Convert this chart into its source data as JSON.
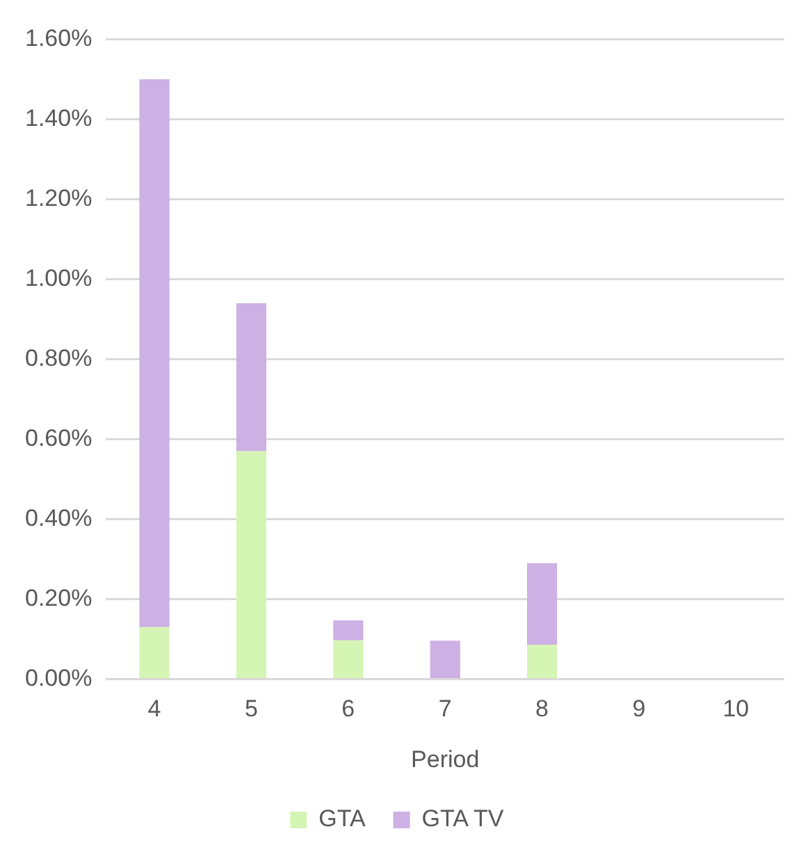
{
  "chart_data": {
    "type": "bar",
    "stacked": true,
    "xlabel": "Period",
    "categories": [
      "4",
      "5",
      "6",
      "7",
      "8",
      "9",
      "10"
    ],
    "series": [
      {
        "name": "GTA",
        "color": "#d5f5b5",
        "values": [
          0.13,
          0.57,
          0.097,
          0,
          0.086,
          0,
          0
        ]
      },
      {
        "name": "GTA TV",
        "color": "#cdb0e4",
        "values": [
          1.37,
          0.37,
          0.05,
          0.096,
          0.204,
          0,
          0
        ]
      }
    ],
    "ylim": [
      0,
      1.6
    ],
    "yticks": [
      {
        "value": 0,
        "label": "0.00%"
      },
      {
        "value": 0.2,
        "label": "0.20%"
      },
      {
        "value": 0.4,
        "label": "0.40%"
      },
      {
        "value": 0.6,
        "label": "0.60%"
      },
      {
        "value": 0.8,
        "label": "0.80%"
      },
      {
        "value": 1,
        "label": "1.00%"
      },
      {
        "value": 1.2,
        "label": "1.20%"
      },
      {
        "value": 1.4,
        "label": "1.40%"
      },
      {
        "value": 1.6,
        "label": "1.60%"
      }
    ],
    "grid": "y",
    "legend": "bottom"
  }
}
